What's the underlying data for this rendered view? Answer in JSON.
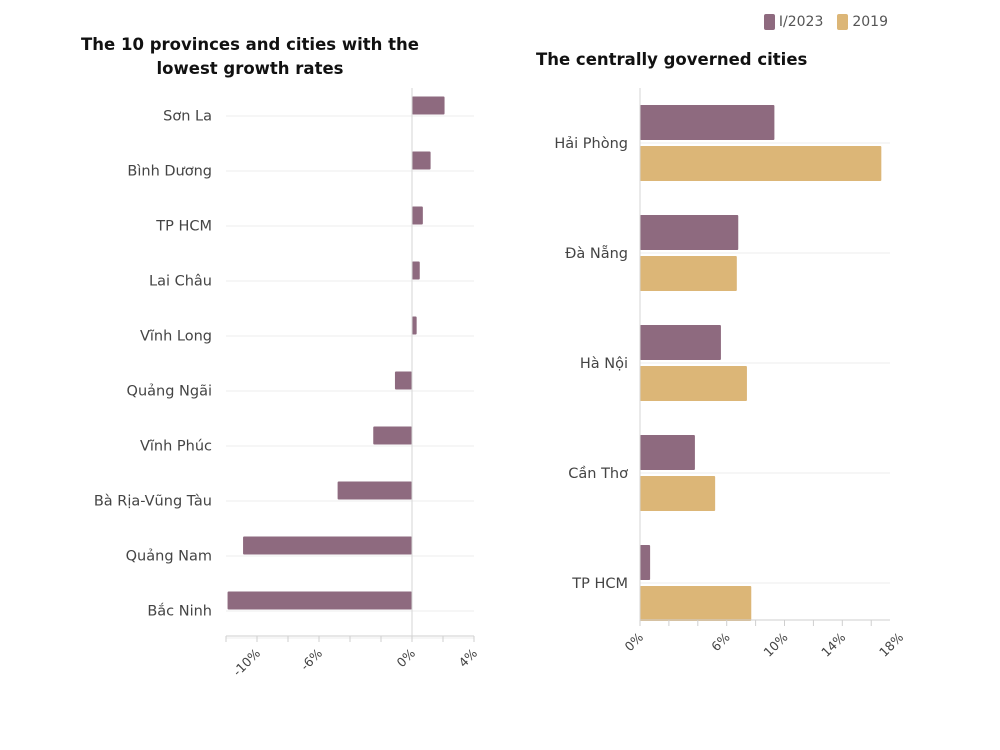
{
  "legend": {
    "items": [
      {
        "label": "I/2023",
        "color": "#8e6a7f"
      },
      {
        "label": "2019",
        "color": "#dcb677"
      }
    ]
  },
  "chart_data": [
    {
      "type": "bar",
      "orientation": "horizontal",
      "title": "The 10 provinces and cities with the lowest growth rates",
      "categories": [
        "Sơn La",
        "Bình Dương",
        "TP HCM",
        "Lai Châu",
        "Vĩnh Long",
        "Quảng Ngãi",
        "Vĩnh Phúc",
        "Bà Rịa-Vũng Tàu",
        "Quảng Nam",
        "Bắc Ninh"
      ],
      "series": [
        {
          "name": "I/2023",
          "color": "#8e6a7f",
          "values": [
            2.1,
            1.2,
            0.7,
            0.5,
            0.3,
            -1.1,
            -2.5,
            -4.8,
            -10.9,
            -11.9
          ]
        }
      ],
      "xlim": [
        -12,
        4
      ],
      "xticks": [
        -10,
        -6,
        0,
        4
      ],
      "xtick_labels": [
        "-10%",
        "-6%",
        "0%",
        "4%"
      ],
      "grid": true
    },
    {
      "type": "bar",
      "orientation": "horizontal",
      "title": "The centrally governed cities",
      "categories": [
        "Hải Phòng",
        "Đà Nẵng",
        "Hà Nội",
        "Cần Thơ",
        "TP HCM"
      ],
      "series": [
        {
          "name": "I/2023",
          "color": "#8e6a7f",
          "values": [
            9.3,
            6.8,
            5.6,
            3.8,
            0.7
          ]
        },
        {
          "name": "2019",
          "color": "#dcb677",
          "values": [
            16.7,
            6.7,
            7.4,
            5.2,
            7.7
          ]
        }
      ],
      "xlim": [
        0,
        17.3
      ],
      "xticks": [
        0,
        6,
        10,
        14,
        18
      ],
      "xtick_labels": [
        "0%",
        "6%",
        "10%",
        "14%",
        "18%"
      ],
      "grid": true
    }
  ]
}
